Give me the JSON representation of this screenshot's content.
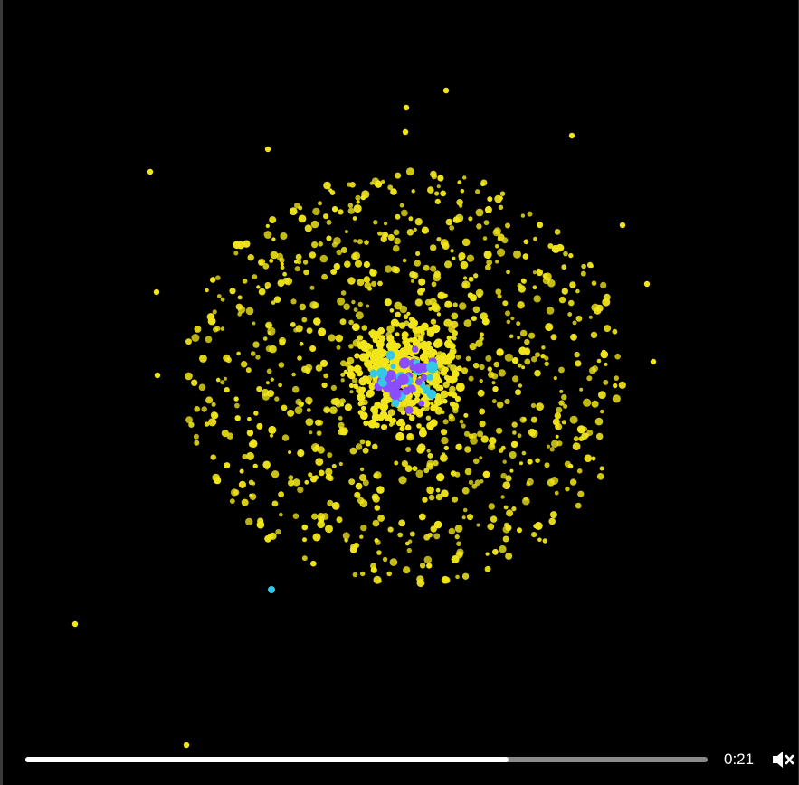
{
  "player": {
    "current_time": "0:21",
    "progress_fraction": 0.708,
    "muted": true,
    "mute_icon": "speaker-muted-icon"
  },
  "colors": {
    "background": "#000000",
    "particle_primary": "#f2e61a",
    "particle_core_violet": "#8a4dff",
    "particle_core_cyan": "#33c8e8",
    "progress_played": "#ffffff",
    "progress_remaining": "#8a8a8a"
  }
}
